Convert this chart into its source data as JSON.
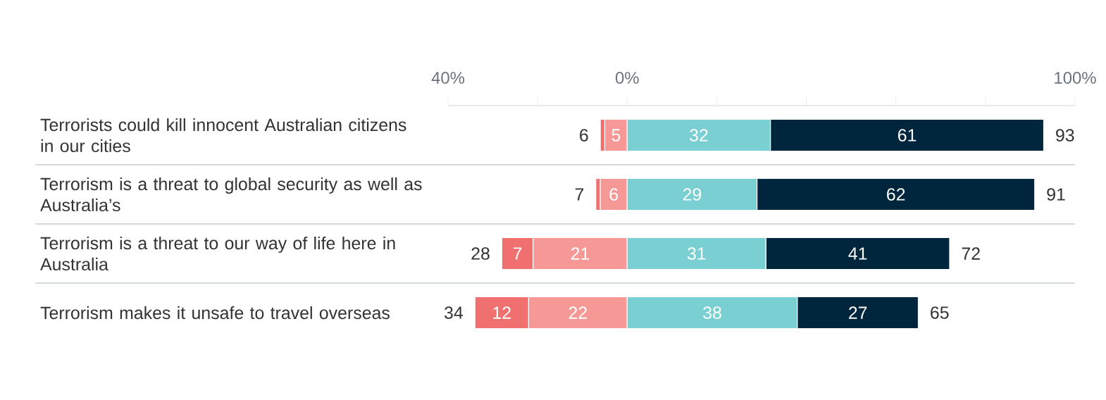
{
  "chart_data": {
    "type": "bar",
    "orientation": "horizontal",
    "categories": [
      "Terrorists could kill innocent Australian citizens in our cities",
      "Terrorism is a threat to global security as well as Australia’s",
      "Terrorism is a threat to our way of life here in Australia",
      "Terrorism makes it unsafe to travel overseas"
    ],
    "series": [
      {
        "color": "#f07070",
        "values": [
          1,
          1,
          7,
          12
        ],
        "base": [
          -6,
          -7,
          -28,
          -34
        ],
        "value_labels": [
          null,
          null,
          "7",
          "12"
        ]
      },
      {
        "color": "#f59896",
        "values": [
          5,
          6,
          21,
          22
        ],
        "base": [
          -5,
          -6,
          -21,
          -22
        ],
        "value_labels": [
          "5",
          "6",
          "21",
          "22"
        ]
      },
      {
        "color": "#7acfd2",
        "values": [
          32,
          29,
          31,
          38
        ],
        "base": [
          0,
          0,
          0,
          0
        ],
        "value_labels": [
          "32",
          "29",
          "31",
          "38"
        ]
      },
      {
        "color": "#00263e",
        "values": [
          61,
          62,
          41,
          27
        ],
        "base": [
          32,
          29,
          31,
          38
        ],
        "value_labels": [
          "61",
          "62",
          "41",
          "27"
        ]
      }
    ],
    "xlim": [
      -40,
      100
    ],
    "xticks": [
      {
        "value": -40,
        "label": "40%"
      },
      {
        "value": -20,
        "label": null
      },
      {
        "value": 0,
        "label": "0%"
      },
      {
        "value": 20,
        "label": null
      },
      {
        "value": 40,
        "label": null
      },
      {
        "value": 60,
        "label": null
      },
      {
        "value": 80,
        "label": null
      },
      {
        "value": 100,
        "label": "100%"
      }
    ],
    "grid": "y",
    "annotations": [
      {
        "text": "6",
        "x": -6,
        "y": "Terrorists could kill innocent Australian citizens in our cities"
      },
      {
        "text": "93",
        "x": 93,
        "y": "Terrorists could kill innocent Australian citizens in our cities"
      },
      {
        "text": "7",
        "x": -7,
        "y": "Terrorism is a threat to global security as well as Australia’s"
      },
      {
        "text": "91",
        "x": 91,
        "y": "Terrorism is a threat to global security as well as Australia’s"
      },
      {
        "text": "28",
        "x": -28,
        "y": "Terrorism is a threat to our way of life here in Australia"
      },
      {
        "text": "72",
        "x": 72,
        "y": "Terrorism is a threat to our way of life here in Australia"
      },
      {
        "text": "34",
        "x": -34,
        "y": "Terrorism makes it unsafe to travel overseas"
      },
      {
        "text": "65",
        "x": 65,
        "y": "Terrorism makes it unsafe to travel overseas"
      }
    ]
  }
}
